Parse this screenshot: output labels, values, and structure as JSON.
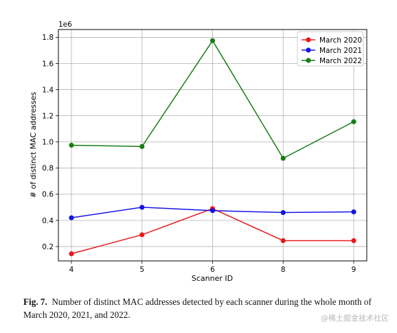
{
  "chart_data": {
    "type": "line",
    "categories": [
      "4",
      "5",
      "6",
      "8",
      "9"
    ],
    "xlabel": "Scanner ID",
    "ylabel": "# of distinct MAC addresses",
    "scale_label": "1e6",
    "y_ticks": [
      "0.2",
      "0.4",
      "0.6",
      "0.8",
      "1.0",
      "1.2",
      "1.4",
      "1.6",
      "1.8"
    ],
    "y_tick_values": [
      0.2,
      0.4,
      0.6,
      0.8,
      1.0,
      1.2,
      1.4,
      1.6,
      1.8
    ],
    "ylim": [
      0.09,
      1.86
    ],
    "grid": true,
    "legend_position": "top-right",
    "series": [
      {
        "name": "March 2020",
        "color": "#e8191a",
        "values": [
          0.145,
          0.29,
          0.49,
          0.245,
          0.245
        ]
      },
      {
        "name": "March 2021",
        "color": "#1414e6",
        "values": [
          0.42,
          0.5,
          0.475,
          0.46,
          0.465
        ]
      },
      {
        "name": "March 2022",
        "color": "#177d17",
        "values": [
          0.975,
          0.965,
          1.775,
          0.875,
          1.155
        ]
      }
    ]
  },
  "caption": {
    "label": "Fig. 7.",
    "text": "Number of distinct MAC addresses detected by each scanner during the whole month of March 2020, 2021, and 2022."
  },
  "watermark": "@稀土掘金技术社区"
}
